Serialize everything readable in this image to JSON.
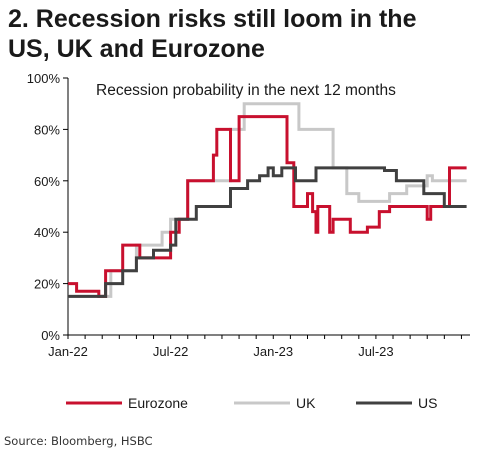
{
  "header": {
    "title_line1": "2. Recession risks still loom in the",
    "title_line2": "US, UK and Eurozone"
  },
  "footer": {
    "source": "Source: Bloomberg, HSBC"
  },
  "chart_data": {
    "type": "line",
    "title": "Recession probability in the next 12 months",
    "xlabel": "",
    "ylabel": "",
    "x_unit": "months since Jan-22",
    "xlim": [
      0,
      23.5
    ],
    "ylim": [
      0,
      100
    ],
    "y_ticks": [
      0,
      20,
      40,
      60,
      80,
      100
    ],
    "y_tick_labels": [
      "0%",
      "20%",
      "40%",
      "60%",
      "80%",
      "100%"
    ],
    "x_ticks": [
      0,
      6,
      12,
      18
    ],
    "x_tick_labels": [
      "Jan-22",
      "Jul-22",
      "Jan-23",
      "Jul-23"
    ],
    "grid": false,
    "legend_position": "bottom",
    "series": [
      {
        "name": "Eurozone",
        "color": "#c8102e",
        "points": [
          [
            0,
            20
          ],
          [
            0.5,
            20
          ],
          [
            0.5,
            17
          ],
          [
            1.8,
            17
          ],
          [
            1.8,
            15
          ],
          [
            2.2,
            15
          ],
          [
            2.2,
            25
          ],
          [
            3.2,
            25
          ],
          [
            3.2,
            35
          ],
          [
            4.2,
            35
          ],
          [
            4.2,
            30
          ],
          [
            6,
            30
          ],
          [
            6,
            40
          ],
          [
            6.5,
            40
          ],
          [
            6.5,
            45
          ],
          [
            7,
            45
          ],
          [
            7,
            60
          ],
          [
            8.5,
            60
          ],
          [
            8.5,
            70
          ],
          [
            8.7,
            70
          ],
          [
            8.7,
            80
          ],
          [
            9.5,
            80
          ],
          [
            9.5,
            60
          ],
          [
            10,
            60
          ],
          [
            10,
            85
          ],
          [
            12.8,
            85
          ],
          [
            12.8,
            67
          ],
          [
            13.2,
            67
          ],
          [
            13.2,
            50
          ],
          [
            14,
            50
          ],
          [
            14,
            55
          ],
          [
            14.3,
            55
          ],
          [
            14.3,
            48
          ],
          [
            14.5,
            48
          ],
          [
            14.5,
            40
          ],
          [
            14.6,
            40
          ],
          [
            14.6,
            50
          ],
          [
            15.3,
            50
          ],
          [
            15.3,
            40
          ],
          [
            15.5,
            40
          ],
          [
            15.5,
            45
          ],
          [
            16.5,
            45
          ],
          [
            16.5,
            40
          ],
          [
            17.5,
            40
          ],
          [
            17.5,
            42
          ],
          [
            18.2,
            42
          ],
          [
            18.2,
            48
          ],
          [
            18.8,
            48
          ],
          [
            18.8,
            50
          ],
          [
            21,
            50
          ],
          [
            21,
            45
          ],
          [
            21.2,
            45
          ],
          [
            21.2,
            50
          ],
          [
            22.3,
            50
          ],
          [
            22.3,
            65
          ],
          [
            23.3,
            65
          ]
        ]
      },
      {
        "name": "UK",
        "color": "#c8c8c8",
        "points": [
          [
            0,
            15
          ],
          [
            2.5,
            15
          ],
          [
            2.5,
            25
          ],
          [
            4,
            25
          ],
          [
            4,
            35
          ],
          [
            5.5,
            35
          ],
          [
            5.5,
            40
          ],
          [
            6,
            40
          ],
          [
            6,
            45
          ],
          [
            7,
            45
          ],
          [
            7,
            60
          ],
          [
            9.5,
            60
          ],
          [
            9.5,
            80
          ],
          [
            10.3,
            80
          ],
          [
            10.3,
            90
          ],
          [
            13.5,
            90
          ],
          [
            13.5,
            80
          ],
          [
            15.5,
            80
          ],
          [
            15.5,
            65
          ],
          [
            16.3,
            65
          ],
          [
            16.3,
            55
          ],
          [
            17,
            55
          ],
          [
            17,
            52
          ],
          [
            18.8,
            52
          ],
          [
            18.8,
            55
          ],
          [
            19.8,
            55
          ],
          [
            19.8,
            58
          ],
          [
            21,
            58
          ],
          [
            21,
            62
          ],
          [
            21.3,
            62
          ],
          [
            21.3,
            60
          ],
          [
            22.2,
            60
          ],
          [
            22.2,
            60
          ],
          [
            23.3,
            60
          ]
        ]
      },
      {
        "name": "US",
        "color": "#404040",
        "points": [
          [
            0,
            15
          ],
          [
            2.2,
            15
          ],
          [
            2.2,
            20
          ],
          [
            3.2,
            20
          ],
          [
            3.2,
            25
          ],
          [
            4,
            25
          ],
          [
            4,
            30
          ],
          [
            5,
            30
          ],
          [
            5,
            33
          ],
          [
            6,
            33
          ],
          [
            6,
            35
          ],
          [
            6.3,
            35
          ],
          [
            6.3,
            45
          ],
          [
            7.5,
            45
          ],
          [
            7.5,
            50
          ],
          [
            9.5,
            50
          ],
          [
            9.5,
            57
          ],
          [
            10.5,
            57
          ],
          [
            10.5,
            60
          ],
          [
            11.2,
            60
          ],
          [
            11.2,
            62
          ],
          [
            11.7,
            62
          ],
          [
            11.7,
            65
          ],
          [
            12,
            65
          ],
          [
            12,
            62
          ],
          [
            12.5,
            62
          ],
          [
            12.5,
            65
          ],
          [
            13.3,
            65
          ],
          [
            13.3,
            60
          ],
          [
            14.5,
            60
          ],
          [
            14.5,
            65
          ],
          [
            18.5,
            65
          ],
          [
            18.5,
            64
          ],
          [
            19.2,
            64
          ],
          [
            19.2,
            60
          ],
          [
            20.8,
            60
          ],
          [
            20.8,
            55
          ],
          [
            22,
            55
          ],
          [
            22,
            50
          ],
          [
            23.3,
            50
          ]
        ]
      }
    ]
  }
}
